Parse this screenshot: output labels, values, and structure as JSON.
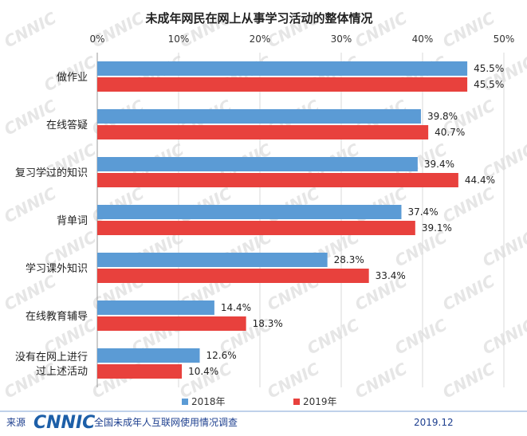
{
  "chart_data": {
    "type": "bar",
    "orientation": "horizontal",
    "title": "未成年网民在网上从事学习活动的整体情况",
    "categories": [
      "做作业",
      "在线答疑",
      "复习学过的知识",
      "背单词",
      "学习课外知识",
      "在线教育辅导",
      "没有在网上进行过上述活动"
    ],
    "category_lines": [
      [
        "做作业"
      ],
      [
        "在线答疑"
      ],
      [
        "复习学过的知识"
      ],
      [
        "背单词"
      ],
      [
        "学习课外知识"
      ],
      [
        "在线教育辅导"
      ],
      [
        "没有在网上进行",
        "过上述活动"
      ]
    ],
    "series": [
      {
        "name": "2018年",
        "color": "#5b9bd5",
        "values": [
          45.5,
          39.8,
          39.4,
          37.4,
          28.3,
          14.4,
          12.6
        ]
      },
      {
        "name": "2019年",
        "color": "#e8413d",
        "values": [
          45.5,
          40.7,
          44.4,
          39.1,
          33.4,
          18.3,
          10.4
        ]
      }
    ],
    "xlim": [
      0,
      50
    ],
    "ticks": [
      0,
      10,
      20,
      30,
      40,
      50
    ],
    "tick_labels": [
      "0%",
      "10%",
      "20%",
      "30%",
      "40%",
      "50%"
    ],
    "value_suffix": "%",
    "legend_position": "bottom-center"
  },
  "footer": {
    "source_label": "来源",
    "logo": "CNNIC",
    "report_name": "全国未成年人互联网使用情况调查",
    "date": "2019.12"
  },
  "watermark": "CNNIC"
}
